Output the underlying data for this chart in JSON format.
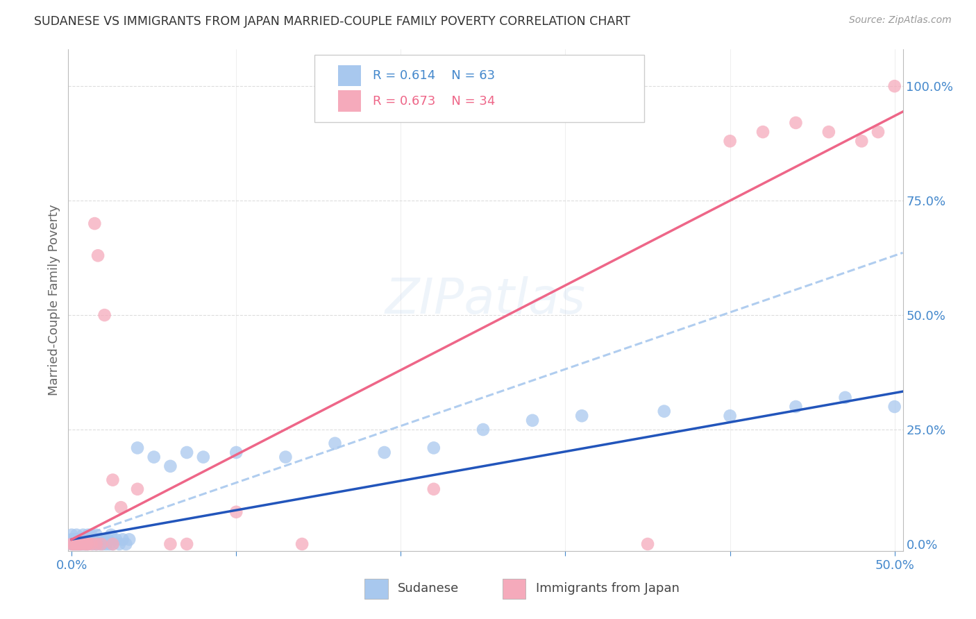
{
  "title": "SUDANESE VS IMMIGRANTS FROM JAPAN MARRIED-COUPLE FAMILY POVERTY CORRELATION CHART",
  "source": "Source: ZipAtlas.com",
  "ylabel": "Married-Couple Family Poverty",
  "xlim": [
    -0.002,
    0.505
  ],
  "ylim": [
    -0.015,
    1.08
  ],
  "blue_color": "#A8C8EE",
  "pink_color": "#F5AABB",
  "blue_line_color": "#2255BB",
  "pink_line_color": "#EE6688",
  "blue_dash_color": "#A8C8EE",
  "R_blue": 0.614,
  "N_blue": 63,
  "R_pink": 0.673,
  "N_pink": 34,
  "legend_label_blue": "Sudanese",
  "legend_label_pink": "Immigrants from Japan",
  "watermark": "ZIPatlas",
  "title_color": "#333333",
  "axis_label_color": "#666666",
  "tick_color": "#4488CC",
  "grid_color": "#DDDDDD",
  "blue_x": [
    0.0,
    0.0,
    0.0,
    0.001,
    0.001,
    0.002,
    0.002,
    0.003,
    0.003,
    0.003,
    0.004,
    0.004,
    0.005,
    0.005,
    0.006,
    0.006,
    0.007,
    0.007,
    0.008,
    0.008,
    0.009,
    0.009,
    0.01,
    0.01,
    0.012,
    0.012,
    0.013,
    0.014,
    0.015,
    0.015,
    0.016,
    0.017,
    0.018,
    0.019,
    0.02,
    0.021,
    0.022,
    0.023,
    0.024,
    0.025,
    0.027,
    0.029,
    0.031,
    0.033,
    0.035,
    0.04,
    0.05,
    0.06,
    0.07,
    0.08,
    0.1,
    0.13,
    0.16,
    0.19,
    0.22,
    0.25,
    0.28,
    0.31,
    0.36,
    0.4,
    0.44,
    0.47,
    0.5
  ],
  "blue_y": [
    0.0,
    0.01,
    0.02,
    0.0,
    0.01,
    0.0,
    0.01,
    0.0,
    0.01,
    0.02,
    0.0,
    0.01,
    0.0,
    0.01,
    0.0,
    0.01,
    0.0,
    0.02,
    0.0,
    0.01,
    0.0,
    0.01,
    0.0,
    0.02,
    0.01,
    0.02,
    0.0,
    0.01,
    0.0,
    0.02,
    0.01,
    0.0,
    0.01,
    0.0,
    0.01,
    0.0,
    0.01,
    0.0,
    0.02,
    0.0,
    0.01,
    0.0,
    0.01,
    0.0,
    0.01,
    0.21,
    0.19,
    0.17,
    0.2,
    0.19,
    0.2,
    0.19,
    0.22,
    0.2,
    0.21,
    0.25,
    0.27,
    0.28,
    0.29,
    0.28,
    0.3,
    0.32,
    0.3
  ],
  "pink_x": [
    0.0,
    0.001,
    0.002,
    0.003,
    0.004,
    0.005,
    0.006,
    0.007,
    0.008,
    0.009,
    0.01,
    0.012,
    0.014,
    0.016,
    0.018,
    0.02,
    0.025,
    0.03,
    0.04,
    0.06,
    0.07,
    0.1,
    0.14,
    0.22,
    0.35,
    0.4,
    0.42,
    0.44,
    0.46,
    0.48,
    0.49,
    0.5,
    0.015,
    0.025
  ],
  "pink_y": [
    0.0,
    0.0,
    0.0,
    0.0,
    0.0,
    0.0,
    0.0,
    0.01,
    0.0,
    0.0,
    0.0,
    0.0,
    0.7,
    0.63,
    0.0,
    0.5,
    0.0,
    0.08,
    0.12,
    0.0,
    0.0,
    0.07,
    0.0,
    0.12,
    0.0,
    0.88,
    0.9,
    0.92,
    0.9,
    0.88,
    0.9,
    1.0,
    0.0,
    0.14
  ]
}
